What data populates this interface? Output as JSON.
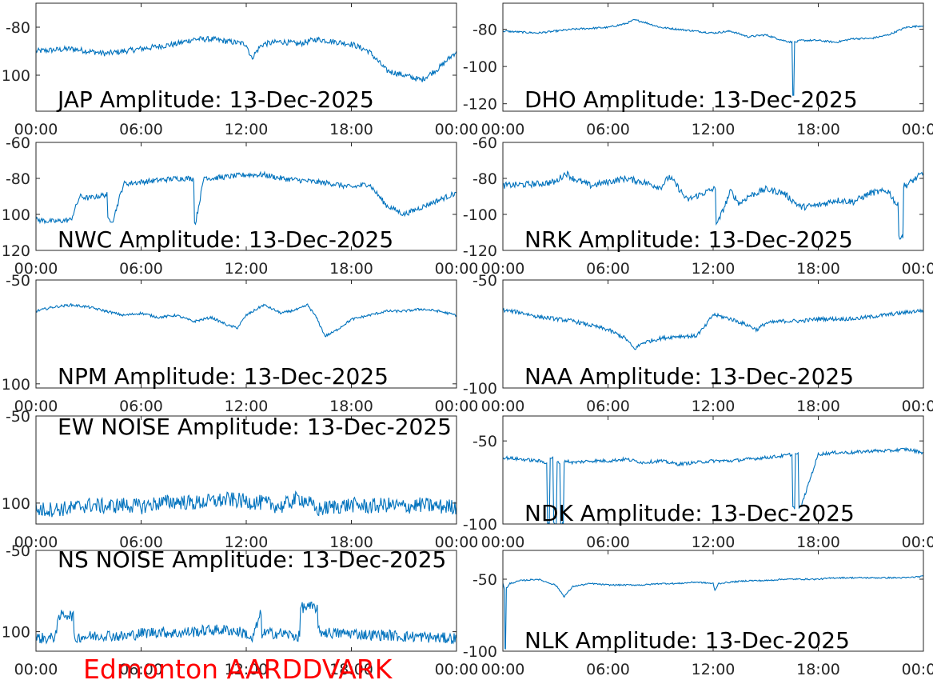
{
  "footer_label": "Edmonton AARDDVARK",
  "colors": {
    "series": "#0072bd",
    "footer": "#ff0000",
    "axis": "#262626"
  },
  "chart_data": [
    {
      "type": "line",
      "title": "JAP Amplitude: 13-Dec-2025",
      "xlabel": "",
      "ylabel": "",
      "x_ticks": [
        "00:00",
        "06:00",
        "12:00",
        "18:00",
        "00:00"
      ],
      "xlim": [
        0,
        24
      ],
      "ylim": [
        -115,
        -70
      ],
      "y_ticks": [
        {
          "v": -80,
          "label": "-80"
        },
        {
          "v": -100,
          "label": "100"
        }
      ],
      "grid": false,
      "noise": 1.2,
      "series": [
        {
          "name": "",
          "x": [
            0,
            2,
            3,
            4,
            5,
            6,
            7,
            8,
            9,
            10,
            11,
            12,
            12.3,
            12.8,
            13,
            14,
            15,
            16,
            17,
            18,
            19,
            20,
            21,
            22,
            23,
            24
          ],
          "y": [
            -90,
            -89,
            -90,
            -91,
            -90,
            -89,
            -88,
            -87,
            -85,
            -85,
            -86,
            -87,
            -93,
            -88,
            -87,
            -86,
            -87,
            -85,
            -86,
            -87,
            -90,
            -98,
            -100,
            -102,
            -97,
            -90
          ]
        }
      ]
    },
    {
      "type": "line",
      "title": "DHO Amplitude: 13-Dec-2025",
      "xlabel": "",
      "ylabel": "",
      "x_ticks": [
        "00:00",
        "06:00",
        "12:00",
        "18:00",
        "00:00"
      ],
      "xlim": [
        0,
        24
      ],
      "ylim": [
        -124,
        -66
      ],
      "y_ticks": [
        {
          "v": -80,
          "label": "-80"
        },
        {
          "v": -100,
          "label": "-100"
        },
        {
          "v": -120,
          "label": "-120"
        }
      ],
      "grid": false,
      "noise": 0.5,
      "series": [
        {
          "name": "",
          "x": [
            0,
            2,
            4,
            6,
            7,
            7.5,
            8,
            9,
            10,
            11,
            12,
            13,
            14,
            15,
            16,
            16.5,
            16.6,
            16.7,
            17,
            18,
            19,
            20,
            21,
            22,
            23,
            24
          ],
          "y": [
            -81,
            -82,
            -80,
            -79,
            -77,
            -75,
            -76,
            -79,
            -80,
            -81,
            -82,
            -81,
            -84,
            -83,
            -86,
            -87,
            -115,
            -87,
            -86,
            -86,
            -87,
            -85,
            -85,
            -83,
            -79,
            -78
          ]
        }
      ]
    },
    {
      "type": "line",
      "title": "NWC Amplitude: 13-Dec-2025",
      "xlabel": "",
      "ylabel": "",
      "x_ticks": [
        "00:00",
        "06:00",
        "12:00",
        "18:00",
        "00:00"
      ],
      "xlim": [
        0,
        24
      ],
      "ylim": [
        -120,
        -60
      ],
      "y_ticks": [
        {
          "v": -60,
          "label": "-60"
        },
        {
          "v": -80,
          "label": "-80"
        },
        {
          "v": -100,
          "label": "100"
        },
        {
          "v": -120,
          "label": "120"
        }
      ],
      "grid": false,
      "noise": 1.5,
      "series": [
        {
          "name": "",
          "x": [
            0,
            1,
            2,
            2.5,
            3,
            4,
            4.2,
            4.4,
            5,
            6,
            7,
            8,
            9,
            9.1,
            9.6,
            10,
            11,
            12,
            13,
            14,
            15,
            16,
            17,
            18,
            19,
            20,
            21,
            22,
            23,
            24
          ],
          "y": [
            -103,
            -104,
            -103,
            -90,
            -91,
            -89,
            -103,
            -103,
            -83,
            -82,
            -81,
            -80,
            -80,
            -105,
            -79,
            -80,
            -79,
            -78,
            -78,
            -80,
            -81,
            -82,
            -83,
            -85,
            -83,
            -95,
            -100,
            -96,
            -92,
            -88
          ]
        }
      ]
    },
    {
      "type": "line",
      "title": "NRK Amplitude: 13-Dec-2025",
      "xlabel": "",
      "ylabel": "",
      "x_ticks": [
        "00:00",
        "06:00",
        "12:00",
        "18:00",
        "00:00"
      ],
      "xlim": [
        0,
        24
      ],
      "ylim": [
        -120,
        -60
      ],
      "y_ticks": [
        {
          "v": -60,
          "label": "-60"
        },
        {
          "v": -80,
          "label": "-80"
        },
        {
          "v": -100,
          "label": "-100"
        },
        {
          "v": -120,
          "label": "-120"
        }
      ],
      "grid": false,
      "noise": 1.8,
      "series": [
        {
          "name": "",
          "x": [
            0,
            2,
            3,
            3.6,
            4,
            5,
            6,
            7,
            8,
            9,
            9.5,
            10,
            10.5,
            11,
            12,
            12.3,
            13,
            13.5,
            14,
            15,
            16,
            17,
            18,
            19,
            20,
            21,
            22,
            22.5,
            22.7,
            23,
            24
          ],
          "y": [
            -84,
            -83,
            -82,
            -77,
            -80,
            -84,
            -82,
            -80,
            -82,
            -85,
            -79,
            -85,
            -92,
            -90,
            -86,
            -104,
            -87,
            -94,
            -90,
            -86,
            -88,
            -96,
            -95,
            -92,
            -93,
            -88,
            -87,
            -95,
            -112,
            -84,
            -77
          ]
        }
      ]
    },
    {
      "type": "line",
      "title": "NPM Amplitude: 13-Dec-2025",
      "xlabel": "",
      "ylabel": "",
      "x_ticks": [
        "00:00",
        "06:00",
        "12:00",
        "18:00",
        "00:00"
      ],
      "xlim": [
        0,
        24
      ],
      "ylim": [
        -102,
        -50
      ],
      "y_ticks": [
        {
          "v": -50,
          "label": "-50"
        },
        {
          "v": -100,
          "label": "100"
        }
      ],
      "grid": false,
      "noise": 0.6,
      "series": [
        {
          "name": "",
          "x": [
            0,
            1,
            2,
            3,
            4,
            5,
            6,
            7,
            8,
            9,
            10,
            11,
            11.5,
            12,
            13,
            14,
            15,
            15.5,
            16,
            16.5,
            17,
            18,
            19,
            20,
            21,
            22,
            23,
            24
          ],
          "y": [
            -65,
            -63,
            -62,
            -63,
            -65,
            -67,
            -66,
            -68,
            -67,
            -70,
            -68,
            -72,
            -73,
            -67,
            -62,
            -66,
            -64,
            -62,
            -68,
            -77,
            -75,
            -69,
            -67,
            -65,
            -65,
            -64,
            -65,
            -67
          ]
        }
      ]
    },
    {
      "type": "line",
      "title": "NAA Amplitude: 13-Dec-2025",
      "xlabel": "",
      "ylabel": "",
      "x_ticks": [
        "00:00",
        "06:00",
        "12:00",
        "18:00",
        "00:00"
      ],
      "xlim": [
        0,
        24
      ],
      "ylim": [
        -100,
        -50
      ],
      "y_ticks": [
        {
          "v": -50,
          "label": "-50"
        },
        {
          "v": -100,
          "label": "-100"
        }
      ],
      "grid": false,
      "noise": 0.9,
      "series": [
        {
          "name": "",
          "x": [
            0,
            1,
            2,
            3,
            4,
            5,
            6,
            7,
            7.5,
            8,
            9,
            10,
            11,
            11.5,
            12,
            13,
            14,
            14.5,
            15,
            16,
            17,
            18,
            19,
            20,
            21,
            22,
            23,
            24
          ],
          "y": [
            -64,
            -65,
            -67,
            -68,
            -69,
            -71,
            -73,
            -77,
            -82,
            -79,
            -77,
            -76,
            -76,
            -72,
            -66,
            -68,
            -71,
            -73,
            -70,
            -69,
            -69,
            -68,
            -68,
            -68,
            -67,
            -66,
            -65,
            -64
          ]
        }
      ]
    },
    {
      "type": "line",
      "title": "EW NOISE Amplitude: 13-Dec-2025",
      "xlabel": "",
      "ylabel": "",
      "x_ticks": [
        "00:00",
        "06:00",
        "12:00",
        "18:00",
        "00:00"
      ],
      "xlim": [
        0,
        24
      ],
      "ylim": [
        -112,
        -50
      ],
      "y_ticks": [
        {
          "v": -50,
          "label": "-50"
        },
        {
          "v": -100,
          "label": "100"
        }
      ],
      "grid": false,
      "noise": 4.5,
      "series": [
        {
          "name": "",
          "x": [
            0,
            2,
            3,
            4,
            5,
            6,
            7,
            8,
            9,
            10,
            11,
            12,
            13,
            14,
            15,
            15.5,
            16,
            17,
            18,
            19,
            20,
            21,
            22,
            23,
            24
          ],
          "y": [
            -104,
            -103,
            -101,
            -102,
            -101,
            -102,
            -100,
            -99,
            -100,
            -99,
            -98,
            -99,
            -100,
            -102,
            -97,
            -99,
            -104,
            -102,
            -101,
            -102,
            -101,
            -102,
            -101,
            -102,
            -102
          ]
        }
      ]
    },
    {
      "type": "line",
      "title": "NDK Amplitude: 13-Dec-2025",
      "xlabel": "",
      "ylabel": "",
      "x_ticks": [
        "00:00",
        "06:00",
        "12:00",
        "18:00",
        "00:00"
      ],
      "xlim": [
        0,
        24
      ],
      "ylim": [
        -100,
        -35
      ],
      "y_ticks": [
        {
          "v": -50,
          "label": "-50"
        },
        {
          "v": -100,
          "label": "-100"
        }
      ],
      "grid": false,
      "noise": 1.0,
      "series": [
        {
          "name": "",
          "x": [
            0,
            1,
            2,
            2.5,
            2.6,
            2.8,
            3,
            3.2,
            3.4,
            3.6,
            4,
            5,
            6,
            7,
            8,
            9,
            10,
            11,
            12,
            13,
            14,
            15,
            16,
            16.5,
            16.6,
            16.8,
            17,
            18,
            19,
            20,
            21,
            22,
            23,
            24
          ],
          "y": [
            -60,
            -61,
            -62,
            -63,
            -100,
            -60,
            -100,
            -63,
            -100,
            -62,
            -63,
            -62,
            -62,
            -61,
            -63,
            -62,
            -64,
            -63,
            -62,
            -62,
            -61,
            -60,
            -59,
            -58,
            -90,
            -58,
            -90,
            -58,
            -57,
            -57,
            -56,
            -56,
            -55,
            -57
          ]
        }
      ]
    },
    {
      "type": "line",
      "title": "NS NOISE Amplitude: 13-Dec-2025",
      "xlabel": "",
      "ylabel": "",
      "x_ticks": [
        "00:00",
        "06:00",
        "12:00",
        "18:00",
        "00:00"
      ],
      "xlim": [
        0,
        24
      ],
      "ylim": [
        -112,
        -50
      ],
      "y_ticks": [
        {
          "v": -50,
          "label": "-50"
        },
        {
          "v": -100,
          "label": "100"
        }
      ],
      "grid": false,
      "noise": 3.5,
      "series": [
        {
          "name": "",
          "x": [
            0,
            1,
            1.4,
            1.6,
            2,
            2.3,
            2.5,
            3,
            4,
            5,
            6,
            7,
            8,
            9,
            10,
            11,
            12,
            12.3,
            12.8,
            13,
            14,
            15,
            15.2,
            16,
            16.2,
            17,
            18,
            19,
            20,
            21,
            22,
            23,
            24
          ],
          "y": [
            -104,
            -104,
            -90,
            -89,
            -90,
            -104,
            -103,
            -103,
            -102,
            -103,
            -101,
            -100,
            -101,
            -100,
            -99,
            -99,
            -101,
            -106,
            -90,
            -101,
            -101,
            -103,
            -85,
            -85,
            -100,
            -101,
            -101,
            -102,
            -102,
            -103,
            -103,
            -104,
            -104
          ]
        }
      ]
    },
    {
      "type": "line",
      "title": "NLK Amplitude: 13-Dec-2025",
      "xlabel": "",
      "ylabel": "",
      "x_ticks": [
        "00:00",
        "06:00",
        "12:00",
        "18:00",
        "00:00"
      ],
      "xlim": [
        0,
        24
      ],
      "ylim": [
        -100,
        -30
      ],
      "y_ticks": [
        {
          "v": -50,
          "label": "-50"
        },
        {
          "v": -100,
          "label": "-100"
        }
      ],
      "grid": false,
      "noise": 0.5,
      "series": [
        {
          "name": "",
          "x": [
            0,
            0.1,
            0.15,
            0.25,
            0.4,
            1,
            2,
            3,
            3.2,
            3.5,
            4,
            5,
            6,
            7,
            8,
            9,
            10,
            11,
            12,
            12.1,
            12.3,
            13,
            14,
            15,
            16,
            17,
            18,
            19,
            20,
            21,
            22,
            23,
            24
          ],
          "y": [
            -53,
            -57,
            -98,
            -56,
            -53,
            -51,
            -50,
            -54,
            -57,
            -62,
            -55,
            -53,
            -54,
            -54,
            -54,
            -53,
            -53,
            -52,
            -53,
            -58,
            -53,
            -52,
            -51,
            -51,
            -50,
            -50,
            -50,
            -49,
            -49,
            -49,
            -49,
            -49,
            -48
          ]
        }
      ]
    }
  ]
}
